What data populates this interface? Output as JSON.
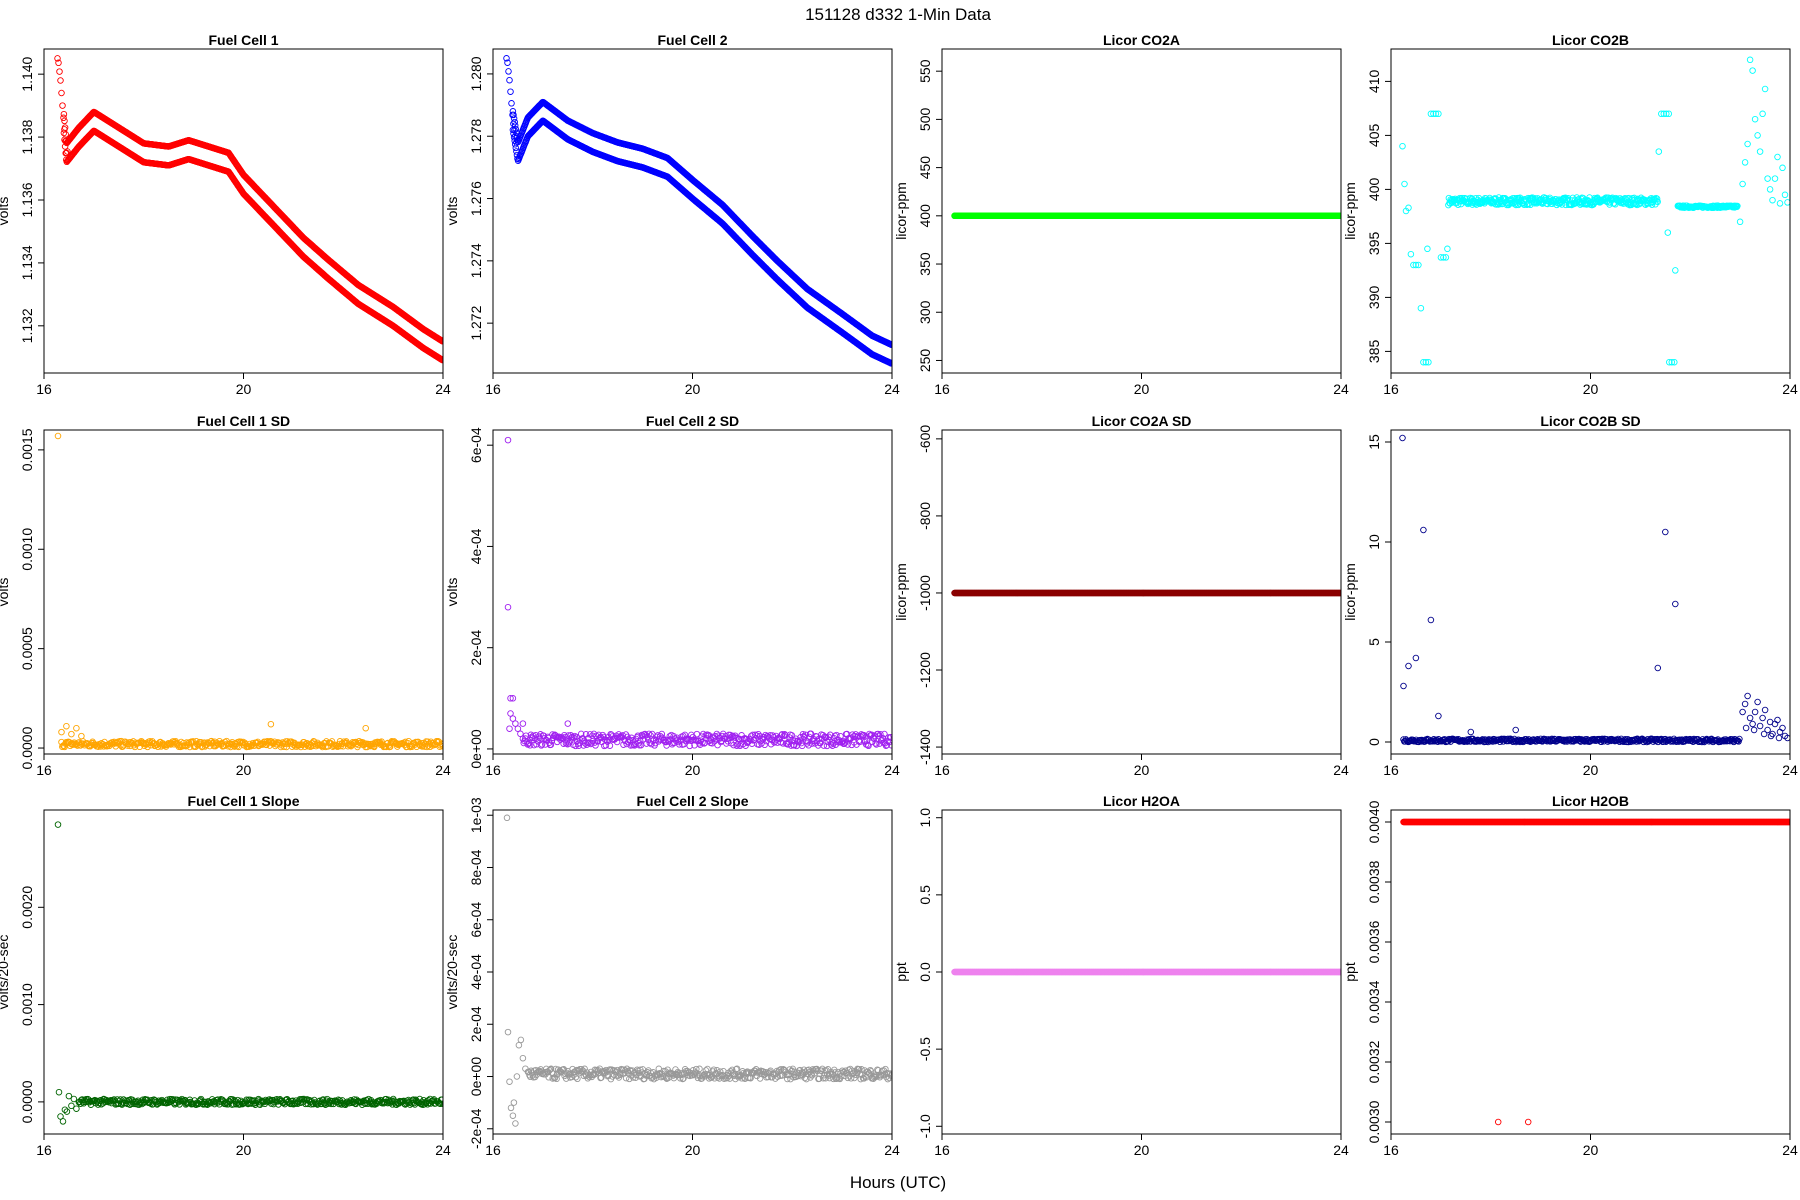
{
  "suptitle": "151128   d332   1-Min Data",
  "xlabel": "Hours (UTC)",
  "chart_data": [
    {
      "type": "scatter",
      "title": "Fuel Cell 1",
      "ylabel": "volts",
      "color": "#ff0000",
      "xlim": [
        16,
        24
      ],
      "xticks": [
        16,
        20,
        24
      ],
      "ylim": [
        1.1305,
        1.1408
      ],
      "yticks": [
        1.132,
        1.134,
        1.136,
        1.138,
        1.14
      ],
      "ytick_labels": [
        "1.132",
        "1.134",
        "1.136",
        "1.138",
        "1.140"
      ],
      "pattern": "bands",
      "x_start": 16.25,
      "x_end": 24.0,
      "profile": [
        [
          16.28,
          1.1405
        ],
        [
          16.33,
          1.1398
        ],
        [
          16.38,
          1.1388
        ],
        [
          16.45,
          1.1375
        ],
        [
          16.7,
          1.138
        ],
        [
          17.0,
          1.1385
        ],
        [
          17.5,
          1.138
        ],
        [
          18.0,
          1.1375
        ],
        [
          18.5,
          1.1374
        ],
        [
          18.9,
          1.1376
        ],
        [
          19.3,
          1.1374
        ],
        [
          19.7,
          1.1372
        ],
        [
          20.0,
          1.1365
        ],
        [
          20.6,
          1.1355
        ],
        [
          21.2,
          1.1345
        ],
        [
          21.7,
          1.1338
        ],
        [
          22.3,
          1.133
        ],
        [
          23.0,
          1.1323
        ],
        [
          23.6,
          1.1316
        ],
        [
          24.0,
          1.1312
        ]
      ],
      "band_offsets": [
        0.0003,
        -0.0003
      ]
    },
    {
      "type": "scatter",
      "title": "Fuel Cell 2",
      "ylabel": "volts",
      "color": "#0000ff",
      "xlim": [
        16,
        24
      ],
      "xticks": [
        16,
        20,
        24
      ],
      "ylim": [
        1.2704,
        1.2808
      ],
      "yticks": [
        1.272,
        1.274,
        1.276,
        1.278,
        1.28
      ],
      "ytick_labels": [
        "1.272",
        "1.274",
        "1.276",
        "1.278",
        "1.280"
      ],
      "pattern": "bands",
      "x_start": 16.25,
      "x_end": 24.0,
      "profile": [
        [
          16.28,
          1.2805
        ],
        [
          16.33,
          1.2798
        ],
        [
          16.4,
          1.2785
        ],
        [
          16.5,
          1.2775
        ],
        [
          16.7,
          1.2783
        ],
        [
          17.0,
          1.2788
        ],
        [
          17.5,
          1.2782
        ],
        [
          18.0,
          1.2778
        ],
        [
          18.5,
          1.2775
        ],
        [
          19.0,
          1.2773
        ],
        [
          19.5,
          1.277
        ],
        [
          20.0,
          1.2763
        ],
        [
          20.6,
          1.2755
        ],
        [
          21.2,
          1.2745
        ],
        [
          21.7,
          1.2737
        ],
        [
          22.3,
          1.2728
        ],
        [
          23.0,
          1.272
        ],
        [
          23.6,
          1.2713
        ],
        [
          24.0,
          1.271
        ]
      ],
      "band_offsets": [
        0.0003,
        -0.0003
      ]
    },
    {
      "type": "scatter",
      "title": "Licor CO2A",
      "ylabel": "licor-ppm",
      "color": "#00ff00",
      "xlim": [
        16,
        24
      ],
      "xticks": [
        16,
        20,
        24
      ],
      "ylim": [
        237,
        573
      ],
      "yticks": [
        250,
        300,
        350,
        400,
        450,
        500,
        550
      ],
      "ytick_labels": [
        "250",
        "300",
        "350",
        "400",
        "450",
        "500",
        "550"
      ],
      "pattern": "constant",
      "x_start": 16.25,
      "x_end": 24.0,
      "value": 400
    },
    {
      "type": "scatter",
      "title": "Licor CO2B",
      "ylabel": "licor-ppm",
      "color": "#00ffff",
      "xlim": [
        16,
        24
      ],
      "xticks": [
        16,
        20,
        24
      ],
      "ylim": [
        383,
        413
      ],
      "yticks": [
        385,
        390,
        395,
        400,
        405,
        410
      ],
      "ytick_labels": [
        "385",
        "390",
        "395",
        "400",
        "405",
        "410"
      ],
      "pattern": "points",
      "points": [
        [
          16.23,
          404
        ],
        [
          16.27,
          400.5
        ],
        [
          16.3,
          398
        ],
        [
          16.35,
          398.3
        ],
        [
          16.4,
          394
        ],
        [
          16.45,
          393
        ],
        [
          16.5,
          393
        ],
        [
          16.55,
          393
        ],
        [
          16.6,
          389
        ],
        [
          16.65,
          384
        ],
        [
          16.7,
          384
        ],
        [
          16.75,
          384
        ],
        [
          16.8,
          407
        ],
        [
          16.85,
          407
        ],
        [
          16.9,
          407
        ],
        [
          16.95,
          407
        ],
        [
          16.73,
          394.5
        ],
        [
          17.0,
          393.7
        ],
        [
          17.05,
          393.7
        ],
        [
          17.1,
          393.7
        ],
        [
          17.13,
          394.5
        ],
        [
          21.42,
          407
        ],
        [
          21.47,
          407
        ],
        [
          21.52,
          407
        ],
        [
          21.57,
          407
        ],
        [
          21.37,
          403.5
        ],
        [
          21.55,
          396
        ],
        [
          21.58,
          384
        ],
        [
          21.63,
          384
        ],
        [
          21.68,
          384
        ],
        [
          21.7,
          392.5
        ],
        [
          23.0,
          397
        ],
        [
          23.05,
          400.5
        ],
        [
          23.1,
          402.5
        ],
        [
          23.15,
          404.2
        ],
        [
          23.2,
          412
        ],
        [
          23.25,
          411
        ],
        [
          23.3,
          406.5
        ],
        [
          23.35,
          405
        ],
        [
          23.4,
          403.5
        ],
        [
          23.45,
          407
        ],
        [
          23.5,
          409.3
        ],
        [
          23.55,
          401
        ],
        [
          23.6,
          400
        ],
        [
          23.65,
          399
        ],
        [
          23.7,
          401
        ],
        [
          23.75,
          403
        ],
        [
          23.8,
          398.7
        ],
        [
          23.85,
          402
        ],
        [
          23.9,
          399.5
        ],
        [
          23.95,
          398.8
        ]
      ],
      "segments": [
        [
          17.15,
          21.35,
          398.9,
          0.35
        ],
        [
          21.75,
          22.95,
          398.4,
          0.1
        ]
      ]
    },
    {
      "type": "scatter",
      "title": "Fuel Cell 1 SD",
      "ylabel": "volts",
      "color": "#ffa500",
      "xlim": [
        16,
        24
      ],
      "xticks": [
        16,
        20,
        24
      ],
      "ylim": [
        -3e-05,
        0.0016
      ],
      "yticks": [
        0,
        0.0005,
        0.001,
        0.0015
      ],
      "ytick_labels": [
        "0.0000",
        "0.0005",
        "0.0010",
        "0.0015"
      ],
      "pattern": "noise",
      "x_start": 16.35,
      "x_end": 24.0,
      "base": 2e-05,
      "spread": 1.5e-05,
      "points": [
        [
          16.28,
          0.00157
        ],
        [
          20.55,
          0.00012
        ],
        [
          22.45,
          0.0001
        ],
        [
          16.35,
          8e-05
        ],
        [
          16.45,
          0.00011
        ],
        [
          16.55,
          7e-05
        ],
        [
          16.65,
          0.0001
        ],
        [
          16.75,
          6e-05
        ]
      ]
    },
    {
      "type": "scatter",
      "title": "Fuel Cell 2 SD",
      "ylabel": "volts",
      "color": "#a020f0",
      "xlim": [
        16,
        24
      ],
      "xticks": [
        16,
        20,
        24
      ],
      "ylim": [
        -1e-05,
        0.00063
      ],
      "yticks": [
        0,
        0.0002,
        0.0004,
        0.0006
      ],
      "ytick_labels": [
        "0e+00",
        "2e-04",
        "4e-04",
        "6e-04"
      ],
      "pattern": "noise",
      "x_start": 16.6,
      "x_end": 24.0,
      "base": 1.8e-05,
      "spread": 1.2e-05,
      "points": [
        [
          16.3,
          0.00061
        ],
        [
          16.3,
          0.00028
        ],
        [
          16.35,
          0.0001
        ],
        [
          16.4,
          0.0001
        ],
        [
          16.35,
          7e-05
        ],
        [
          16.4,
          6e-05
        ],
        [
          16.45,
          5e-05
        ],
        [
          16.5,
          4e-05
        ],
        [
          16.33,
          4e-05
        ],
        [
          16.55,
          3e-05
        ],
        [
          16.6,
          5e-05
        ],
        [
          17.5,
          5e-05
        ]
      ]
    },
    {
      "type": "scatter",
      "title": "Licor CO2A SD",
      "ylabel": "licor-ppm",
      "color": "#8b0000",
      "xlim": [
        16,
        24
      ],
      "xticks": [
        16,
        20,
        24
      ],
      "ylim": [
        -1418,
        -577
      ],
      "yticks": [
        -1400,
        -1200,
        -1000,
        -800,
        -600
      ],
      "ytick_labels": [
        "-1400",
        "-1200",
        "-1000",
        "-800",
        "-600"
      ],
      "pattern": "constant",
      "x_start": 16.25,
      "x_end": 24.0,
      "value": -1000
    },
    {
      "type": "scatter",
      "title": "Licor CO2B SD",
      "ylabel": "licor-ppm",
      "color": "#00008b",
      "xlim": [
        16,
        24
      ],
      "xticks": [
        16,
        20,
        24
      ],
      "ylim": [
        -0.6,
        15.6
      ],
      "yticks": [
        0,
        5,
        10,
        15
      ],
      "ytick_labels": [
        "0",
        "5",
        "10",
        "15"
      ],
      "pattern": "noise",
      "x_start": 16.25,
      "x_end": 23.0,
      "base": 0.08,
      "spread": 0.08,
      "points": [
        [
          16.23,
          15.2
        ],
        [
          16.25,
          2.8
        ],
        [
          16.35,
          3.8
        ],
        [
          16.5,
          4.2
        ],
        [
          16.65,
          10.6
        ],
        [
          16.8,
          6.1
        ],
        [
          16.95,
          1.3
        ],
        [
          17.6,
          0.5
        ],
        [
          18.5,
          0.6
        ],
        [
          21.35,
          3.7
        ],
        [
          21.5,
          10.5
        ],
        [
          21.7,
          6.9
        ],
        [
          23.05,
          1.5
        ],
        [
          23.1,
          1.9
        ],
        [
          23.15,
          2.3
        ],
        [
          23.2,
          1.2
        ],
        [
          23.25,
          0.9
        ],
        [
          23.3,
          1.5
        ],
        [
          23.35,
          2.0
        ],
        [
          23.4,
          0.8
        ],
        [
          23.45,
          1.2
        ],
        [
          23.5,
          1.6
        ],
        [
          23.55,
          0.6
        ],
        [
          23.6,
          1.0
        ],
        [
          23.65,
          0.4
        ],
        [
          23.7,
          0.9
        ],
        [
          23.75,
          1.1
        ],
        [
          23.8,
          0.5
        ],
        [
          23.85,
          0.7
        ],
        [
          23.9,
          0.3
        ],
        [
          23.95,
          0.2
        ],
        [
          23.12,
          0.7
        ],
        [
          23.28,
          0.6
        ],
        [
          23.48,
          0.4
        ],
        [
          23.62,
          0.3
        ],
        [
          23.78,
          0.2
        ]
      ]
    },
    {
      "type": "scatter",
      "title": "Fuel Cell 1 Slope",
      "ylabel": "volts/20-sec",
      "color": "#006400",
      "xlim": [
        16,
        24
      ],
      "xticks": [
        16,
        20,
        24
      ],
      "ylim": [
        -0.00033,
        0.003
      ],
      "yticks": [
        0,
        0.001,
        0.002
      ],
      "ytick_labels": [
        "0.0000",
        "0.0010",
        "0.0020"
      ],
      "pattern": "noise",
      "x_start": 16.7,
      "x_end": 24.0,
      "base": 0.0,
      "spread": 3e-05,
      "points": [
        [
          16.28,
          0.00285
        ],
        [
          16.3,
          0.0001
        ],
        [
          16.33,
          -0.00015
        ],
        [
          16.38,
          -0.0002
        ],
        [
          16.42,
          -8e-05
        ],
        [
          16.46,
          -0.0001
        ],
        [
          16.5,
          6e-05
        ],
        [
          16.55,
          -4e-05
        ],
        [
          16.6,
          3e-05
        ],
        [
          16.65,
          -7e-05
        ]
      ]
    },
    {
      "type": "scatter",
      "title": "Fuel Cell 2 Slope",
      "ylabel": "volts/20-sec",
      "color": "#999999",
      "xlim": [
        16,
        24
      ],
      "xticks": [
        16,
        20,
        24
      ],
      "ylim": [
        -0.00022,
        0.00102
      ],
      "yticks": [
        -0.0002,
        0,
        0.0002,
        0.0004,
        0.0006,
        0.0008,
        0.001
      ],
      "ytick_labels": [
        "-2e-04",
        "0e+00",
        "2e-04",
        "4e-04",
        "6e-04",
        "8e-04",
        "1e-03"
      ],
      "pattern": "noise",
      "x_start": 16.7,
      "x_end": 24.0,
      "base": 1e-05,
      "spread": 2e-05,
      "points": [
        [
          16.28,
          0.00099
        ],
        [
          16.3,
          0.00017
        ],
        [
          16.33,
          -2e-05
        ],
        [
          16.36,
          -0.00012
        ],
        [
          16.4,
          -0.00015
        ],
        [
          16.42,
          -0.0001
        ],
        [
          16.45,
          -0.00018
        ],
        [
          16.48,
          0.0
        ],
        [
          16.52,
          0.00012
        ],
        [
          16.56,
          0.00014
        ],
        [
          16.6,
          7e-05
        ],
        [
          16.65,
          3e-05
        ]
      ]
    },
    {
      "type": "scatter",
      "title": "Licor H2OA",
      "ylabel": "ppt",
      "color": "#ee82ee",
      "xlim": [
        16,
        24
      ],
      "xticks": [
        16,
        20,
        24
      ],
      "ylim": [
        -1.05,
        1.05
      ],
      "yticks": [
        -1,
        -0.5,
        0,
        0.5,
        1
      ],
      "ytick_labels": [
        "-1.0",
        "-0.5",
        "0.0",
        "0.5",
        "1.0"
      ],
      "pattern": "constant",
      "x_start": 16.25,
      "x_end": 24.0,
      "value": 0
    },
    {
      "type": "scatter",
      "title": "Licor H2OB",
      "ylabel": "ppt",
      "color": "#ff0000",
      "xlim": [
        16,
        24
      ],
      "xticks": [
        16,
        20,
        24
      ],
      "ylim": [
        0.00296,
        0.00404
      ],
      "yticks": [
        0.003,
        0.0032,
        0.0034,
        0.0036,
        0.0038,
        0.004
      ],
      "ytick_labels": [
        "0.0030",
        "0.0032",
        "0.0034",
        "0.0036",
        "0.0038",
        "0.0040"
      ],
      "pattern": "constant",
      "x_start": 16.25,
      "x_end": 24.0,
      "value": 0.004,
      "points": [
        [
          18.15,
          0.003
        ],
        [
          18.75,
          0.003
        ]
      ]
    }
  ]
}
